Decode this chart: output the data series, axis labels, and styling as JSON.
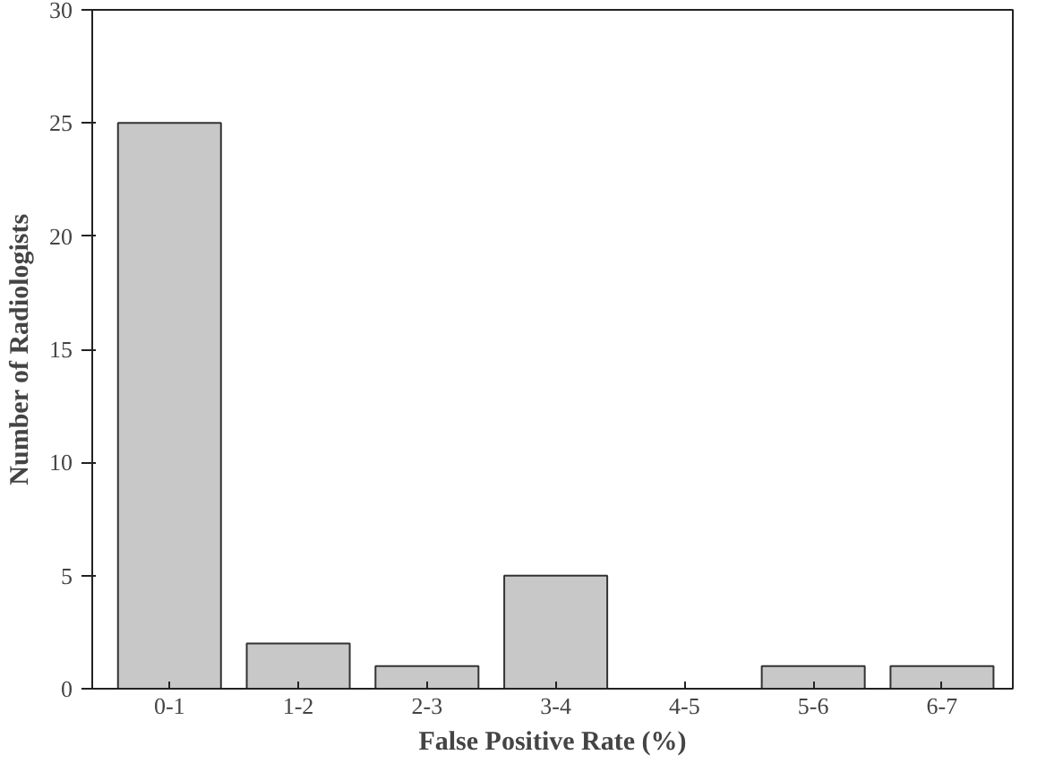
{
  "chart_data": {
    "type": "bar",
    "xlabel": "False Positive Rate (%)",
    "ylabel": "Number of Radiologists",
    "categories": [
      "0-1",
      "1-2",
      "2-3",
      "3-4",
      "4-5",
      "5-6",
      "6-7"
    ],
    "values": [
      25,
      2,
      1,
      5,
      0,
      1,
      1
    ],
    "color": "#c8c8c8",
    "ylim": [
      0,
      30
    ],
    "yticks": [
      0,
      5,
      10,
      15,
      20,
      25,
      30
    ],
    "grid": false
  }
}
